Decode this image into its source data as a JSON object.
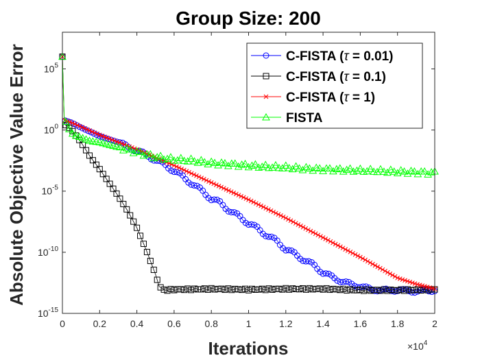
{
  "chart_data": {
    "type": "line",
    "title": "Group Size:  200",
    "xlabel": "Iterations",
    "ylabel": "Absolute Objective Value Error",
    "x_scale_note": "×10",
    "x_scale_exp": "4",
    "xlim": [
      0,
      20000
    ],
    "ylim": [
      1e-15,
      100000000.0
    ],
    "yscale": "log",
    "x_ticks": [
      0,
      2000,
      4000,
      6000,
      8000,
      10000,
      12000,
      14000,
      16000,
      18000,
      20000
    ],
    "x_tick_labels": [
      "0",
      "0.2",
      "0.4",
      "0.6",
      "0.8",
      "1",
      "1.2",
      "1.4",
      "1.6",
      "1.8",
      "2"
    ],
    "y_ticks": [
      {
        "exp": -15,
        "base": "10",
        "sup": "-15"
      },
      {
        "exp": -10,
        "base": "10",
        "sup": "-10"
      },
      {
        "exp": -5,
        "base": "10",
        "sup": "-5"
      },
      {
        "exp": 0,
        "base": "10",
        "sup": "0"
      },
      {
        "exp": 5,
        "base": "10",
        "sup": "5"
      }
    ],
    "legend_position": "top-right",
    "series": [
      {
        "name": "C-FISTA (τ = 0.01)",
        "legend": {
          "prefix": "C-FISTA (",
          "tau": "τ",
          "suffix": " = 0.01)"
        },
        "color": "#0000ff",
        "marker": "circle",
        "x": [
          0,
          100,
          500,
          1000,
          2000,
          3000,
          4000,
          4500,
          5000,
          5500,
          6000,
          6500,
          7000,
          7500,
          8000,
          8500,
          9000,
          9500,
          10000,
          10500,
          11000,
          11500,
          12000,
          12500,
          13000,
          13500,
          14000,
          14500,
          15000,
          15500,
          16000,
          16500,
          17000,
          18000,
          19000,
          20000
        ],
        "y_log10": [
          6.0,
          0.8,
          0.6,
          0.2,
          -0.5,
          -1.0,
          -1.7,
          -2.0,
          -2.5,
          -2.8,
          -3.4,
          -3.8,
          -4.5,
          -4.9,
          -5.7,
          -5.9,
          -6.7,
          -7.0,
          -7.7,
          -8.0,
          -8.7,
          -9.0,
          -9.8,
          -10.1,
          -10.7,
          -11.0,
          -11.7,
          -12.0,
          -12.4,
          -12.6,
          -12.8,
          -13.0,
          -13.1,
          -13.1,
          -13.2,
          -13.1
        ]
      },
      {
        "name": "C-FISTA (τ = 0.1)",
        "legend": {
          "prefix": "C-FISTA (",
          "tau": "τ",
          "suffix": " = 0.1)"
        },
        "color": "#000000",
        "marker": "square",
        "x": [
          0,
          100,
          500,
          1000,
          1500,
          2000,
          2500,
          3000,
          3500,
          4000,
          4500,
          5000,
          5200,
          5500,
          6000,
          8000,
          10000,
          12000,
          14000,
          16000,
          18000,
          20000
        ],
        "y_log10": [
          6.0,
          0.5,
          0.0,
          -1.0,
          -2.2,
          -3.2,
          -4.3,
          -5.4,
          -6.6,
          -8.0,
          -9.8,
          -11.8,
          -12.8,
          -13.1,
          -13.05,
          -13.0,
          -13.05,
          -13.0,
          -13.0,
          -13.1,
          -13.1,
          -13.05
        ]
      },
      {
        "name": "C-FISTA (τ = 1)",
        "legend": {
          "prefix": "C-FISTA (",
          "tau": "τ",
          "suffix": " = 1)"
        },
        "color": "#ff0000",
        "marker": "x",
        "x": [
          0,
          100,
          500,
          2000,
          4000,
          6000,
          8000,
          10000,
          12000,
          14000,
          16000,
          18000,
          19000,
          20000
        ],
        "y_log10": [
          6.0,
          0.8,
          0.6,
          -0.4,
          -1.6,
          -2.9,
          -4.3,
          -5.7,
          -7.2,
          -8.8,
          -10.4,
          -12.1,
          -12.6,
          -13.0
        ]
      },
      {
        "name": "FISTA",
        "legend": {
          "prefix": "FISTA",
          "tau": "",
          "suffix": ""
        },
        "color": "#00ff00",
        "marker": "triangle",
        "x": [
          0,
          100,
          300,
          600,
          1000,
          1500,
          2000,
          2500,
          3000,
          3500,
          4000,
          4500,
          5000,
          5500,
          6000,
          7000,
          8000,
          9000,
          10000,
          11000,
          12000,
          13000,
          14000,
          15000,
          16000,
          17000,
          18000,
          19000,
          20000
        ],
        "y_log10": [
          6.0,
          1.0,
          0.2,
          -0.4,
          -0.6,
          -0.9,
          -1.0,
          -1.2,
          -1.4,
          -1.6,
          -1.8,
          -2.0,
          -2.2,
          -2.3,
          -2.4,
          -2.5,
          -2.7,
          -2.8,
          -2.9,
          -3.0,
          -3.05,
          -3.15,
          -3.2,
          -3.25,
          -3.3,
          -3.35,
          -3.4,
          -3.45,
          -3.5
        ]
      }
    ]
  }
}
